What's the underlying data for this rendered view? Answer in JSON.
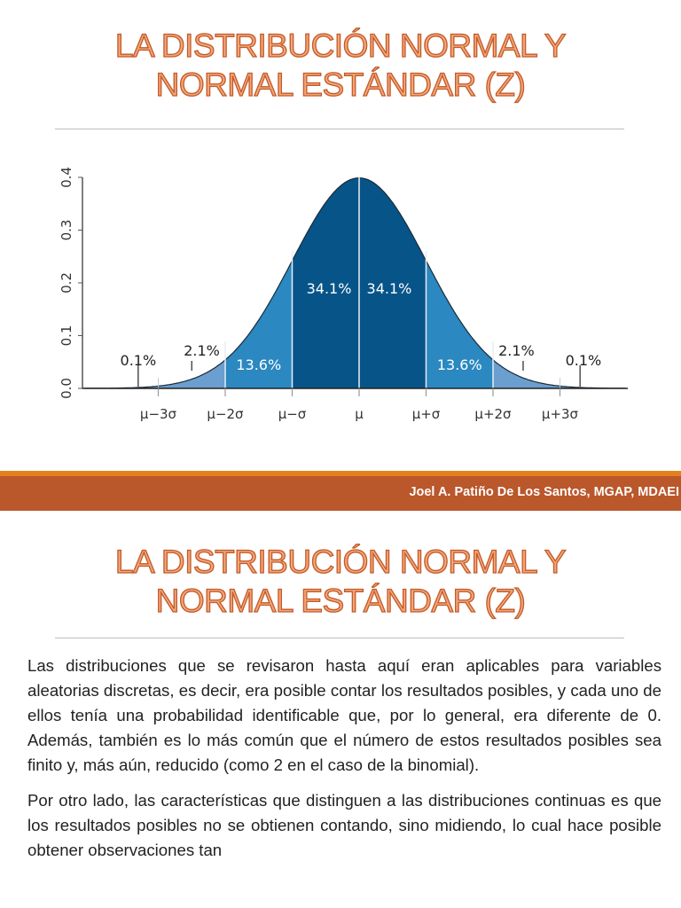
{
  "slide1": {
    "title_line1": "LA DISTRIBUCIÓN NORMAL Y",
    "title_line2": "NORMAL ESTÁNDAR (Z)",
    "footer": "Joel A. Patiño De Los Santos, MGAP, MDAEI"
  },
  "chart_data": {
    "type": "area",
    "distribution": "normal",
    "y_ticks": [
      "0.0",
      "0.1",
      "0.2",
      "0.3",
      "0.4"
    ],
    "ylim": [
      0,
      0.4
    ],
    "x_ticks": [
      "μ−3σ",
      "μ−2σ",
      "μ−σ",
      "μ",
      "μ+σ",
      "μ+2σ",
      "μ+3σ"
    ],
    "x_range_sigma": [
      -4.1,
      4.0
    ],
    "regions": [
      {
        "from": -4,
        "to": -3,
        "label": "0.1%",
        "color": "#6a9fcf"
      },
      {
        "from": -3,
        "to": -2,
        "label": "2.1%",
        "color": "#6a9fcf"
      },
      {
        "from": -2,
        "to": -1,
        "label": "13.6%",
        "color": "#2b88c0"
      },
      {
        "from": -1,
        "to": 0,
        "label": "34.1%",
        "color": "#075489"
      },
      {
        "from": 0,
        "to": 1,
        "label": "34.1%",
        "color": "#075489"
      },
      {
        "from": 1,
        "to": 2,
        "label": "13.6%",
        "color": "#2b88c0"
      },
      {
        "from": 2,
        "to": 3,
        "label": "2.1%",
        "color": "#6a9fcf"
      },
      {
        "from": 3,
        "to": 4,
        "label": "0.1%",
        "color": "#6a9fcf"
      }
    ],
    "grid": false
  },
  "slide2": {
    "title_line1": "LA DISTRIBUCIÓN NORMAL Y",
    "title_line2": "NORMAL ESTÁNDAR (Z)",
    "paragraphs": [
      "Las distribuciones que se revisaron hasta aquí eran aplicables para variables aleatorias discretas, es decir, era posible contar los resultados posibles, y cada uno de ellos tenía una probabilidad identificable que, por lo general, era diferente de 0. Además, también es lo más común que el número de estos resultados posibles sea finito y, más aún, reducido (como 2 en el caso de la binomial).",
      "Por otro lado, las características que distinguen a las distribuciones continuas es que los resultados posibles no se obtienen contando, sino midiendo, lo cual hace posible obtener observaciones tan"
    ]
  }
}
